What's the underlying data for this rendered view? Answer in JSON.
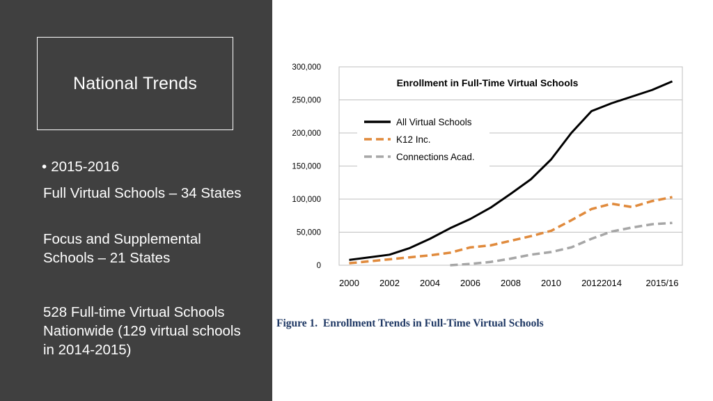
{
  "slide": {
    "title": "National Trends",
    "bullet": "2015-2016",
    "para1": "Full Virtual Schools – 34 States",
    "para2": "Focus and Supplemental Schools – 21 States",
    "para3": "528 Full-time Virtual Schools Nationwide (129 virtual schools in 2014-2015)"
  },
  "figure_caption": {
    "label": "Figure 1.",
    "text": "Enrollment Trends in Full-Time Virtual Schools"
  },
  "chart_data": {
    "type": "line",
    "title": "Enrollment in Full-Time Virtual Schools",
    "x_tick_labels": [
      "2000",
      "2002",
      "2004",
      "2006",
      "2008",
      "2010",
      "20122014",
      "2015/16"
    ],
    "x_tick_years": [
      2000,
      2002,
      2004,
      2006,
      2008,
      2010,
      2012.5,
      2015.5
    ],
    "y_tick_labels": [
      "0",
      "50,000",
      "100,000",
      "150,000",
      "200,000",
      "250,000",
      "300,000"
    ],
    "ylim": [
      0,
      300000
    ],
    "xlim": [
      1999.5,
      2016.5
    ],
    "grid": true,
    "legend_position": "top-left",
    "series": [
      {
        "name": "All Virtual Schools",
        "color": "#000000",
        "dash": "solid",
        "x": [
          2000,
          2001,
          2002,
          2003,
          2004,
          2005,
          2006,
          2007,
          2008,
          2009,
          2010,
          2011,
          2012,
          2013,
          2014,
          2015,
          2016
        ],
        "y": [
          8000,
          12000,
          16000,
          26000,
          40000,
          56000,
          70000,
          87000,
          108000,
          130000,
          160000,
          200000,
          233000,
          245000,
          255000,
          265000,
          278000
        ]
      },
      {
        "name": "K12 Inc.",
        "color": "#e08a3c",
        "dash": "dashed",
        "x": [
          2000,
          2001,
          2002,
          2003,
          2004,
          2005,
          2006,
          2007,
          2008,
          2009,
          2010,
          2011,
          2012,
          2013,
          2014,
          2015,
          2016
        ],
        "y": [
          3000,
          6000,
          9000,
          12000,
          15000,
          19000,
          27000,
          30000,
          37000,
          44000,
          52000,
          68000,
          85000,
          93000,
          88000,
          97000,
          103000
        ]
      },
      {
        "name": "Connections Acad.",
        "color": "#a6a6a6",
        "dash": "dashed",
        "x": [
          2005,
          2006,
          2007,
          2008,
          2009,
          2010,
          2011,
          2012,
          2013,
          2014,
          2015,
          2016
        ],
        "y": [
          0,
          2000,
          5000,
          10000,
          16000,
          20000,
          27000,
          40000,
          51000,
          57000,
          62000,
          64000
        ]
      }
    ]
  }
}
